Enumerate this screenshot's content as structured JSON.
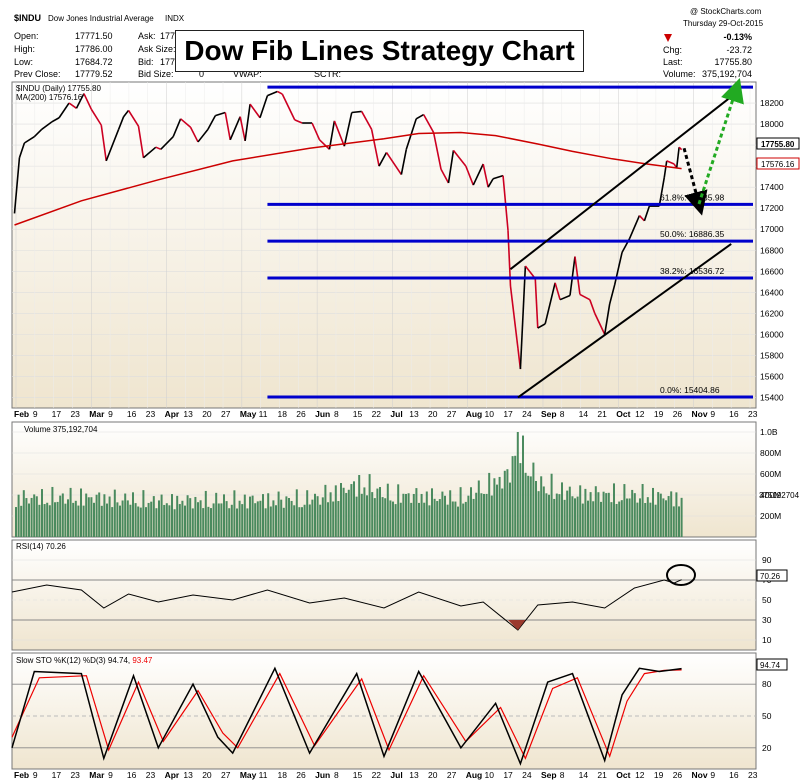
{
  "header": {
    "symbol": "$INDU",
    "name": "Dow Jones Industrial Average",
    "exchange": "INDX",
    "copyright": "@ StockCharts.com",
    "date": "Thursday  29-Oct-2015",
    "open_label": "Open:",
    "open": "17771.50",
    "high_label": "High:",
    "high": "17786.00",
    "low_label": "Low:",
    "low": "17684.72",
    "prev_label": "Prev Close:",
    "prev": "17779.52",
    "ask_label": "Ask:",
    "ask": "177",
    "asksize_label": "Ask Size:",
    "bid_label": "Bid:",
    "bid": "177",
    "bidsize_label": "Bid Size:",
    "bidsize": "0",
    "vwap_label": "VWAP:",
    "sctr_label": "SCTR:",
    "chg_pct": "-0.13%",
    "chg_label": "Chg:",
    "chg": "-23.72",
    "last_label": "Last:",
    "last": "17755.80",
    "volume_label": "Volume:",
    "volume": "375,192,704"
  },
  "title": "Dow Fib Lines Strategy Chart",
  "colors": {
    "price_up": "#000000",
    "price_down": "#cc0022",
    "ma": "#cc0000",
    "fib": "#0000cc",
    "channel": "#000000",
    "volume": "#4a8a5e",
    "rsi": "#000000",
    "k_line": "#000000",
    "d_line": "#ee0000",
    "panel_bg_top": "#ffffff",
    "panel_bg_bottom": "#efe5cf",
    "projection_down": "#000000",
    "projection_up": "#22aa22"
  },
  "chart_data": [
    {
      "type": "line",
      "panel": "price",
      "legend_price": "$INDU (Daily) 17755.80",
      "legend_ma": "MA(200) 17576.16",
      "ylim": [
        15300,
        18400
      ],
      "y_ticks": [
        15400,
        15600,
        15800,
        16000,
        16200,
        16400,
        16600,
        16800,
        17000,
        17200,
        17400,
        17600,
        17800,
        18000,
        18200
      ],
      "x_ticks": [
        "Feb",
        "9",
        "17",
        "23",
        "Mar",
        "9",
        "16",
        "23",
        "Apr",
        "13",
        "20",
        "27",
        "May",
        "11",
        "18",
        "26",
        "Jun",
        "8",
        "15",
        "22",
        "Jul",
        "13",
        "20",
        "27",
        "Aug",
        "10",
        "17",
        "24",
        "Sep",
        "8",
        "14",
        "21",
        "Oct",
        "12",
        "19",
        "26",
        "Nov",
        "9",
        "16",
        "23"
      ],
      "price_points": [
        [
          "2015-02-02",
          17150
        ],
        [
          "2015-02-04",
          17680
        ],
        [
          "2015-02-06",
          17820
        ],
        [
          "2015-02-10",
          17880
        ],
        [
          "2015-02-13",
          17950
        ],
        [
          "2015-02-17",
          18020
        ],
        [
          "2015-02-20",
          18060
        ],
        [
          "2015-02-24",
          18200
        ],
        [
          "2015-02-27",
          18150
        ],
        [
          "2015-03-02",
          18290
        ],
        [
          "2015-03-05",
          18140
        ],
        [
          "2015-03-09",
          17990
        ],
        [
          "2015-03-11",
          17650
        ],
        [
          "2015-03-16",
          17950
        ],
        [
          "2015-03-18",
          18070
        ],
        [
          "2015-03-20",
          18130
        ],
        [
          "2015-03-24",
          17980
        ],
        [
          "2015-03-26",
          17680
        ],
        [
          "2015-03-31",
          17780
        ],
        [
          "2015-04-02",
          17760
        ],
        [
          "2015-04-07",
          17880
        ],
        [
          "2015-04-10",
          18050
        ],
        [
          "2015-04-14",
          17970
        ],
        [
          "2015-04-17",
          17830
        ],
        [
          "2015-04-21",
          17950
        ],
        [
          "2015-04-24",
          18080
        ],
        [
          "2015-04-28",
          18110
        ],
        [
          "2015-04-30",
          17850
        ],
        [
          "2015-05-04",
          18070
        ],
        [
          "2015-05-06",
          17840
        ],
        [
          "2015-05-08",
          18190
        ],
        [
          "2015-05-12",
          18060
        ],
        [
          "2015-05-15",
          18270
        ],
        [
          "2015-05-19",
          18310
        ],
        [
          "2015-05-21",
          18285
        ],
        [
          "2015-05-26",
          18040
        ],
        [
          "2015-05-29",
          18010
        ],
        [
          "2015-06-02",
          18010
        ],
        [
          "2015-06-05",
          17850
        ],
        [
          "2015-06-09",
          17760
        ],
        [
          "2015-06-11",
          18030
        ],
        [
          "2015-06-15",
          17790
        ],
        [
          "2015-06-18",
          18110
        ],
        [
          "2015-06-22",
          18120
        ],
        [
          "2015-06-26",
          17950
        ],
        [
          "2015-06-29",
          17600
        ],
        [
          "2015-07-02",
          17730
        ],
        [
          "2015-07-08",
          17520
        ],
        [
          "2015-07-10",
          17760
        ],
        [
          "2015-07-14",
          18050
        ],
        [
          "2015-07-17",
          18090
        ],
        [
          "2015-07-21",
          17920
        ],
        [
          "2015-07-24",
          17570
        ],
        [
          "2015-07-27",
          17440
        ],
        [
          "2015-07-29",
          17750
        ],
        [
          "2015-08-03",
          17600
        ],
        [
          "2015-08-06",
          17420
        ],
        [
          "2015-08-10",
          17620
        ],
        [
          "2015-08-12",
          17400
        ],
        [
          "2015-08-14",
          17480
        ],
        [
          "2015-08-18",
          17510
        ],
        [
          "2015-08-20",
          16990
        ],
        [
          "2015-08-21",
          16460
        ],
        [
          "2015-08-24",
          15870
        ],
        [
          "2015-08-25",
          15670
        ],
        [
          "2015-08-27",
          16650
        ],
        [
          "2015-08-31",
          16530
        ],
        [
          "2015-09-01",
          16060
        ],
        [
          "2015-09-04",
          16100
        ],
        [
          "2015-09-08",
          16490
        ],
        [
          "2015-09-10",
          16330
        ],
        [
          "2015-09-14",
          16370
        ],
        [
          "2015-09-16",
          16740
        ],
        [
          "2015-09-18",
          16380
        ],
        [
          "2015-09-22",
          16330
        ],
        [
          "2015-09-24",
          16200
        ],
        [
          "2015-09-28",
          16000
        ],
        [
          "2015-09-30",
          16290
        ],
        [
          "2015-10-02",
          16470
        ],
        [
          "2015-10-05",
          16780
        ],
        [
          "2015-10-08",
          16910
        ],
        [
          "2015-10-12",
          17130
        ],
        [
          "2015-10-14",
          17080
        ],
        [
          "2015-10-16",
          17220
        ],
        [
          "2015-10-20",
          17220
        ],
        [
          "2015-10-22",
          17490
        ],
        [
          "2015-10-23",
          17650
        ],
        [
          "2015-10-26",
          17620
        ],
        [
          "2015-10-27",
          17580
        ],
        [
          "2015-10-28",
          17780
        ],
        [
          "2015-10-29",
          17755.8
        ]
      ],
      "ma200_points": [
        [
          "2015-02-02",
          17040
        ],
        [
          "2015-03-01",
          17270
        ],
        [
          "2015-04-01",
          17470
        ],
        [
          "2015-05-01",
          17650
        ],
        [
          "2015-06-01",
          17770
        ],
        [
          "2015-07-01",
          17860
        ],
        [
          "2015-07-15",
          17910
        ],
        [
          "2015-08-01",
          17920
        ],
        [
          "2015-08-15",
          17890
        ],
        [
          "2015-09-01",
          17810
        ],
        [
          "2015-09-15",
          17740
        ],
        [
          "2015-10-01",
          17670
        ],
        [
          "2015-10-15",
          17620
        ],
        [
          "2015-10-29",
          17576.16
        ]
      ],
      "fib_levels": [
        {
          "label": "",
          "value": 18351
        },
        {
          "label": "61.8%: 17235.98",
          "value": 17235.98
        },
        {
          "label": "50.0%: 16886.35",
          "value": 16886.35
        },
        {
          "label": "38.2%: 16536.72",
          "value": 16536.72
        },
        {
          "label": "0.0%: 15404.86",
          "value": 15404.86
        }
      ],
      "channel_upper": [
        [
          "2015-08-21",
          16620
        ],
        [
          "2015-11-18",
          18260
        ]
      ],
      "channel_lower": [
        [
          "2015-08-24",
          15400
        ],
        [
          "2015-11-18",
          16860
        ]
      ],
      "projection_down": [
        [
          "2015-10-30",
          17770
        ],
        [
          "2015-11-05",
          17240
        ]
      ],
      "projection_up": [
        [
          "2015-11-05",
          17240
        ],
        [
          "2015-11-20",
          18330
        ]
      ],
      "last_price_tag": "17755.80",
      "ma_tag": "17576.16"
    },
    {
      "type": "bar",
      "panel": "volume",
      "legend": "Volume 375,192,704",
      "y_ticks": [
        "200M",
        "400M",
        "600M",
        "800M",
        "1.0B"
      ],
      "ylim": [
        0,
        1000000000
      ],
      "last_tag": "375192704",
      "values": [
        [
          "2015-02-01",
          380
        ],
        [
          "2015-03-01",
          390
        ],
        [
          "2015-04-01",
          350
        ],
        [
          "2015-05-01",
          360
        ],
        [
          "2015-06-01",
          370
        ],
        [
          "2015-06-22",
          520
        ],
        [
          "2015-07-01",
          420
        ],
        [
          "2015-08-01",
          380
        ],
        [
          "2015-08-20",
          600
        ],
        [
          "2015-08-24",
          1000
        ],
        [
          "2015-08-26",
          760
        ],
        [
          "2015-09-01",
          520
        ],
        [
          "2015-09-15",
          420
        ],
        [
          "2015-10-01",
          420
        ],
        [
          "2015-10-15",
          410
        ],
        [
          "2015-10-29",
          375
        ]
      ]
    },
    {
      "type": "line",
      "panel": "rsi",
      "legend": "RSI(14) 70.26",
      "y_ticks": [
        10,
        30,
        50,
        70,
        90
      ],
      "ylim": [
        0,
        100
      ],
      "last_tag": "70.26",
      "values": [
        [
          "2015-02-01",
          58
        ],
        [
          "2015-02-15",
          65
        ],
        [
          "2015-03-01",
          60
        ],
        [
          "2015-03-10",
          42
        ],
        [
          "2015-03-20",
          56
        ],
        [
          "2015-04-01",
          48
        ],
        [
          "2015-04-15",
          55
        ],
        [
          "2015-05-01",
          50
        ],
        [
          "2015-05-15",
          60
        ],
        [
          "2015-06-01",
          47
        ],
        [
          "2015-06-15",
          52
        ],
        [
          "2015-07-01",
          42
        ],
        [
          "2015-07-15",
          58
        ],
        [
          "2015-08-01",
          44
        ],
        [
          "2015-08-10",
          48
        ],
        [
          "2015-08-24",
          20
        ],
        [
          "2015-09-01",
          45
        ],
        [
          "2015-09-15",
          48
        ],
        [
          "2015-09-28",
          42
        ],
        [
          "2015-10-10",
          62
        ],
        [
          "2015-10-22",
          70
        ],
        [
          "2015-10-26",
          67
        ],
        [
          "2015-10-29",
          70.26
        ]
      ]
    },
    {
      "type": "line",
      "panel": "stochastic",
      "legend_k": "Slow STO %K(12) %D(3) 94.74,",
      "legend_d": "93.47",
      "y_ticks": [
        20,
        50,
        80
      ],
      "ylim": [
        0,
        100
      ],
      "last_tag": "94.74",
      "k_values": [
        [
          "2015-02-01",
          20
        ],
        [
          "2015-02-10",
          92
        ],
        [
          "2015-03-01",
          90
        ],
        [
          "2015-03-10",
          10
        ],
        [
          "2015-03-22",
          88
        ],
        [
          "2015-04-01",
          20
        ],
        [
          "2015-04-15",
          80
        ],
        [
          "2015-04-25",
          30
        ],
        [
          "2015-05-01",
          15
        ],
        [
          "2015-05-18",
          95
        ],
        [
          "2015-06-01",
          15
        ],
        [
          "2015-06-20",
          90
        ],
        [
          "2015-07-01",
          12
        ],
        [
          "2015-07-15",
          92
        ],
        [
          "2015-08-01",
          20
        ],
        [
          "2015-08-15",
          62
        ],
        [
          "2015-08-25",
          5
        ],
        [
          "2015-09-05",
          82
        ],
        [
          "2015-09-15",
          90
        ],
        [
          "2015-09-28",
          8
        ],
        [
          "2015-10-05",
          70
        ],
        [
          "2015-10-12",
          95
        ],
        [
          "2015-10-20",
          92
        ],
        [
          "2015-10-29",
          94.74
        ]
      ],
      "d_values": [
        [
          "2015-02-01",
          30
        ],
        [
          "2015-02-12",
          86
        ],
        [
          "2015-03-03",
          88
        ],
        [
          "2015-03-12",
          18
        ],
        [
          "2015-03-24",
          82
        ],
        [
          "2015-04-03",
          26
        ],
        [
          "2015-04-17",
          74
        ],
        [
          "2015-04-27",
          34
        ],
        [
          "2015-05-03",
          20
        ],
        [
          "2015-05-20",
          90
        ],
        [
          "2015-06-03",
          22
        ],
        [
          "2015-06-22",
          85
        ],
        [
          "2015-07-03",
          18
        ],
        [
          "2015-07-17",
          88
        ],
        [
          "2015-08-03",
          26
        ],
        [
          "2015-08-17",
          58
        ],
        [
          "2015-08-27",
          10
        ],
        [
          "2015-09-07",
          76
        ],
        [
          "2015-09-17",
          86
        ],
        [
          "2015-09-30",
          12
        ],
        [
          "2015-10-07",
          64
        ],
        [
          "2015-10-14",
          90
        ],
        [
          "2015-10-22",
          93
        ],
        [
          "2015-10-29",
          93.47
        ]
      ]
    }
  ]
}
